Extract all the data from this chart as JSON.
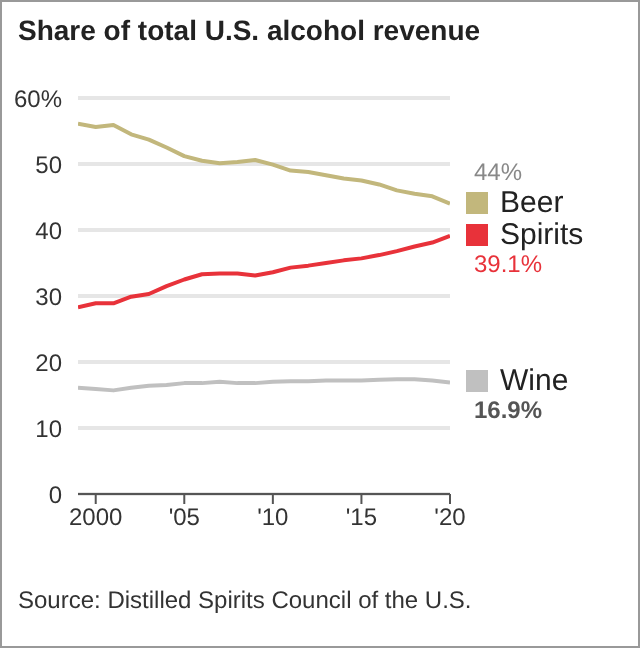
{
  "chart_data": {
    "type": "line",
    "title": "Share of total U.S. alcohol revenue",
    "x": [
      1999,
      2000,
      2001,
      2002,
      2003,
      2004,
      2005,
      2006,
      2007,
      2008,
      2009,
      2010,
      2011,
      2012,
      2013,
      2014,
      2015,
      2016,
      2017,
      2018,
      2019,
      2020
    ],
    "series": [
      {
        "name": "Beer",
        "color": "#c2b77c",
        "values": [
          56.1,
          55.6,
          55.9,
          54.5,
          53.7,
          52.5,
          51.2,
          50.5,
          50.1,
          50.3,
          50.6,
          49.9,
          49.0,
          48.8,
          48.3,
          47.8,
          47.5,
          46.9,
          46.0,
          45.5,
          45.1,
          44
        ],
        "value_labels": [
          null,
          null,
          null,
          null,
          null,
          null,
          null,
          null,
          null,
          null,
          null,
          null,
          null,
          null,
          null,
          null,
          null,
          null,
          null,
          null,
          null,
          "44%"
        ]
      },
      {
        "name": "Spirits",
        "color": "#e8323a",
        "values": [
          28.3,
          28.9,
          28.9,
          29.9,
          30.3,
          31.5,
          32.5,
          33.3,
          33.4,
          33.4,
          33.1,
          33.6,
          34.3,
          34.6,
          35.0,
          35.4,
          35.7,
          36.2,
          36.8,
          37.5,
          38.1,
          39.1
        ],
        "value_labels": [
          null,
          null,
          null,
          null,
          null,
          null,
          null,
          null,
          null,
          null,
          null,
          null,
          null,
          null,
          null,
          null,
          null,
          null,
          null,
          null,
          null,
          "39.1%"
        ]
      },
      {
        "name": "Wine",
        "color": "#c0c0c0",
        "values": [
          16.1,
          15.9,
          15.7,
          16.1,
          16.4,
          16.5,
          16.8,
          16.8,
          17.0,
          16.8,
          16.8,
          17.0,
          17.1,
          17.1,
          17.2,
          17.2,
          17.2,
          17.3,
          17.4,
          17.4,
          17.2,
          16.9
        ],
        "value_labels": [
          null,
          null,
          null,
          null,
          null,
          null,
          null,
          null,
          null,
          null,
          null,
          null,
          null,
          null,
          null,
          null,
          null,
          null,
          null,
          null,
          null,
          "16.9%"
        ]
      }
    ],
    "xlim": [
      1999,
      2020
    ],
    "xticks": [
      {
        "value": 2000,
        "label": "2000"
      },
      {
        "value": 2005,
        "label": "'05"
      },
      {
        "value": 2010,
        "label": "'10"
      },
      {
        "value": 2015,
        "label": "'15"
      },
      {
        "value": 2020,
        "label": "'20"
      }
    ],
    "ylim": [
      0,
      60
    ],
    "yticks": [
      0,
      10,
      20,
      30,
      40,
      50,
      {
        "value": 60,
        "label": "60%"
      }
    ],
    "grid": "y",
    "legend": "right",
    "marker": "none",
    "line_style": "solid",
    "annotations": [
      "Source: Distilled Spirits Council of the U.S."
    ]
  }
}
